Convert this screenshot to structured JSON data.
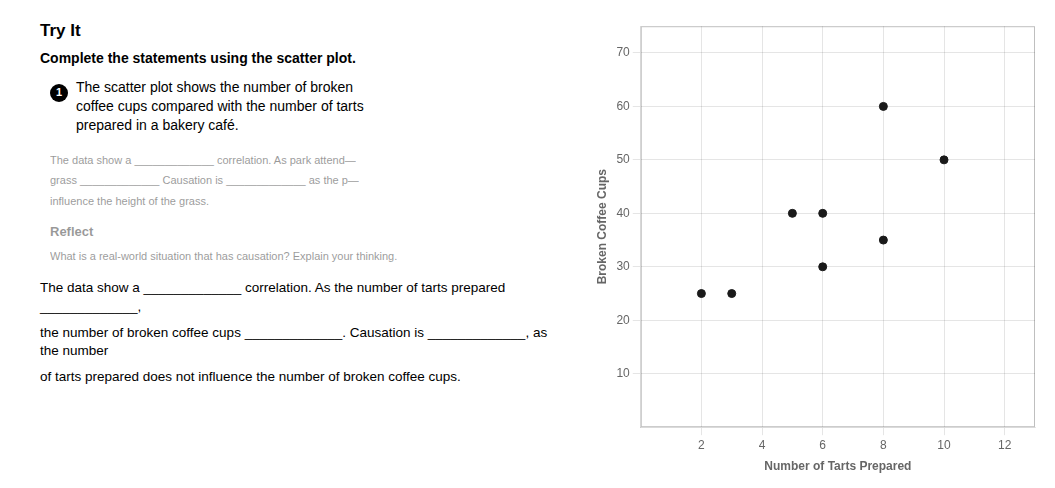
{
  "chart_data": {
    "type": "scatter",
    "title": "Try It",
    "subtitle": "Complete the statements using the scatter plot.",
    "annotations": [
      "1",
      "The scatter plot shows the number of broken",
      "coffee cups compared with the number of tarts",
      "prepared in a bakery café.",
      "The data show a _____________ correlation. As park attend—",
      "grass _____________  Causation is _____________ as the p—",
      "influence the height of the grass.",
      "Reflect",
      "What is a real-world situation that has causation? Explain your thinking.",
      "The data show a _____________ correlation. As the number of tarts prepared _____________,",
      "the number of broken coffee cups _____________. Causation is _____________, as the number",
      "of tarts prepared does not influence the number of broken coffee cups."
    ],
    "x": [
      2,
      3,
      5,
      6,
      6,
      8,
      8,
      10
    ],
    "values": [
      25,
      25,
      40,
      40,
      30,
      60,
      35,
      50
    ],
    "color": "#1a1a1a",
    "xlabel": "Number of Tarts Prepared",
    "ylabel": "Broken Coffee Cups",
    "xlim": [
      0,
      13
    ],
    "ylim": [
      0,
      75
    ],
    "xticks": [
      2,
      4,
      6,
      8,
      10,
      12
    ],
    "yticks": [
      10,
      20,
      30,
      40,
      50,
      60,
      70
    ],
    "grid": true
  }
}
